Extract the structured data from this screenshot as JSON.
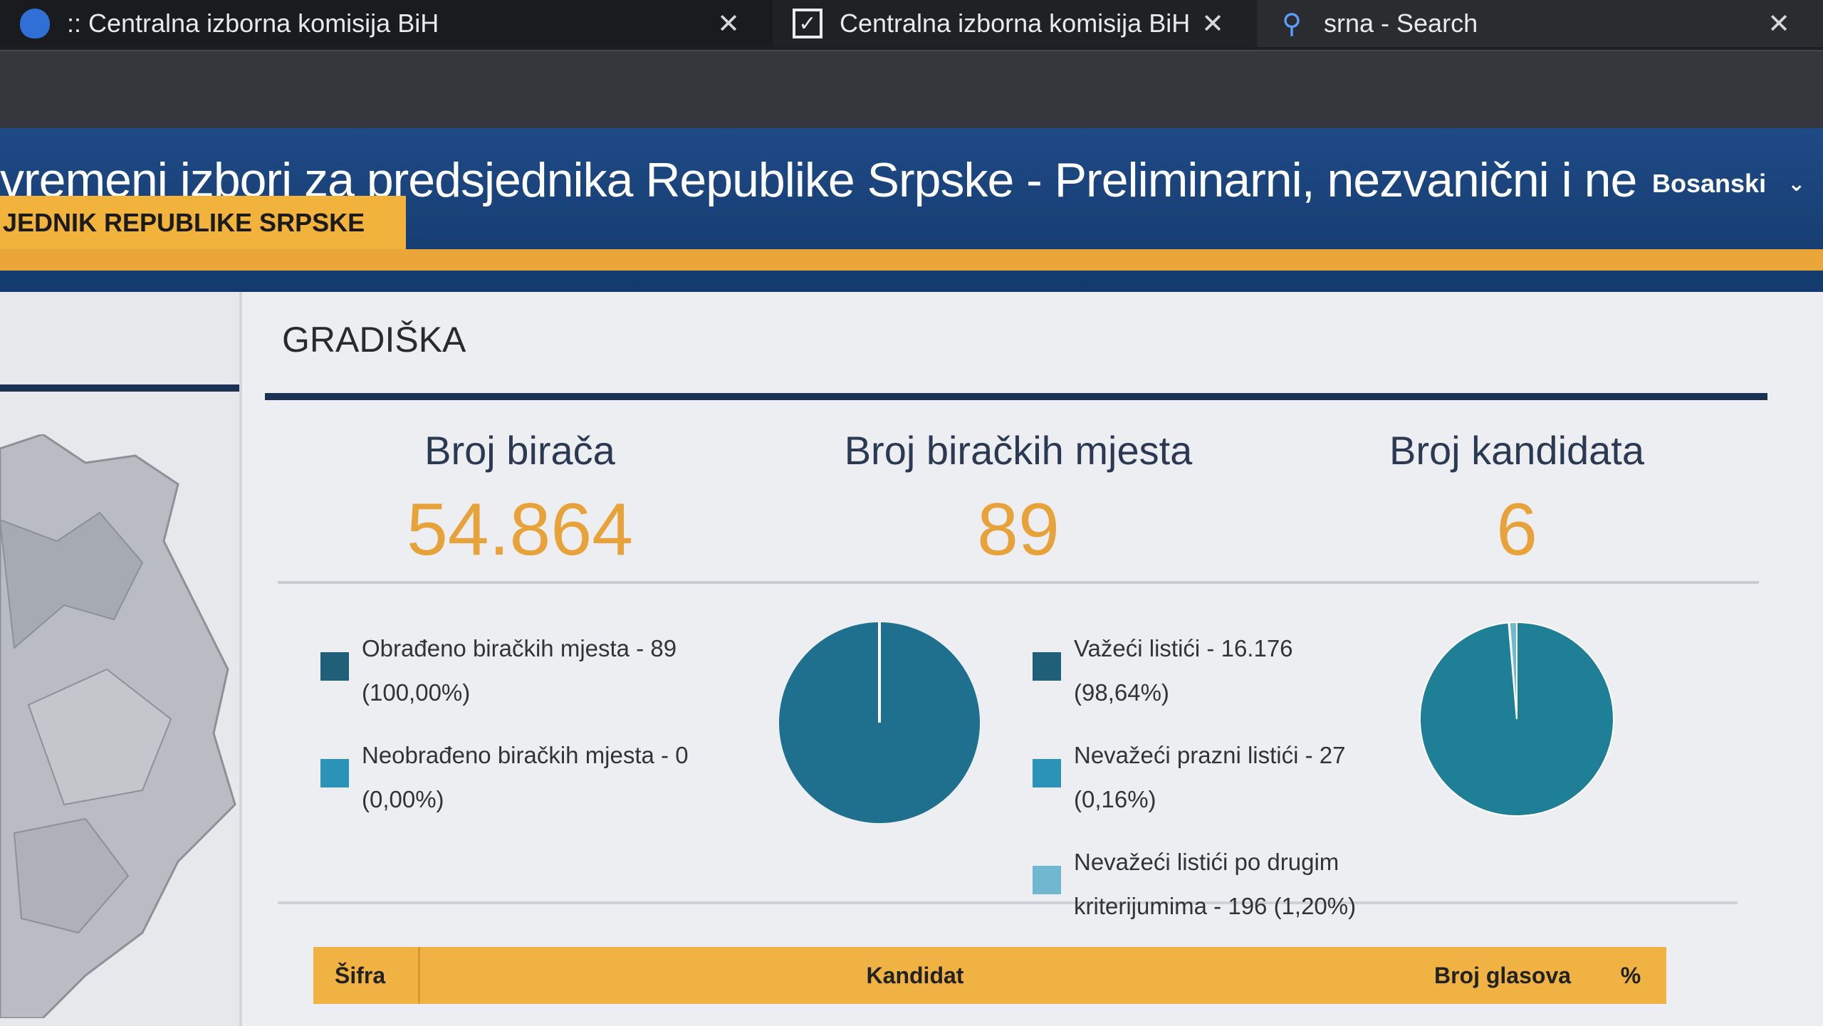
{
  "browser": {
    "tabs": [
      {
        "title": ":: Centralna izborna komisija BiH",
        "icon": "shield-icon"
      },
      {
        "title": "Centralna izborna komisija BiH - I",
        "icon": "checkbox-icon"
      },
      {
        "title": "srna - Search",
        "icon": "search-icon"
      }
    ],
    "close_glyph": "✕"
  },
  "header": {
    "title": "vremeni izbori za predsjednika Republike Srpske - Preliminarni, nezvanični i nekompletni r",
    "language": "Bosanski",
    "section_tab": "JEDNIK REPUBLIKE SRPSKE"
  },
  "municipality": {
    "name": "GRADIŠKA"
  },
  "stats": [
    {
      "label": "Broj birača",
      "value": "54.864"
    },
    {
      "label": "Broj biračkih mjesta",
      "value": "89"
    },
    {
      "label": "Broj kandidata",
      "value": "6"
    }
  ],
  "polling_legend": [
    {
      "line1": "Obrađeno biračkih mjesta - 89",
      "line2": "(100,00%)",
      "color": "#1f5f78"
    },
    {
      "line1": "Neobrađeno biračkih mjesta - 0",
      "line2": "(0,00%)",
      "color": "#2b93b8"
    }
  ],
  "ballots_legend": [
    {
      "line1": "Važeći listići - 16.176",
      "line2": "(98,64%)",
      "color": "#1f5f78"
    },
    {
      "line1": "Nevažeći prazni listići - 27",
      "line2": "(0,16%)",
      "color": "#2b93b8"
    },
    {
      "line1": "Nevažeći listići po drugim",
      "line2": "kriterijumima - 196 (1,20%)",
      "color": "#6fb8cf"
    }
  ],
  "chart_data": [
    {
      "type": "pie",
      "slices": [
        {
          "label": "Obrađeno biračkih mjesta",
          "value": 100.0
        },
        {
          "label": "Neobrađeno biračkih mjesta",
          "value": 0.0
        }
      ],
      "colors": [
        "#1f6f8e",
        "#2b93b8"
      ]
    },
    {
      "type": "pie",
      "slices": [
        {
          "label": "Važeći listići",
          "value": 98.64
        },
        {
          "label": "Nevažeći prazni listići",
          "value": 0.16
        },
        {
          "label": "Nevažeći listići po drugim kriterijumima",
          "value": 1.2
        }
      ],
      "colors": [
        "#1f7f96",
        "#2b93b8",
        "#6fb8cf"
      ]
    }
  ],
  "table": {
    "headers": {
      "code": "Šifra",
      "candidate": "Kandidat",
      "votes": "Broj glasova",
      "percent": "%"
    }
  }
}
